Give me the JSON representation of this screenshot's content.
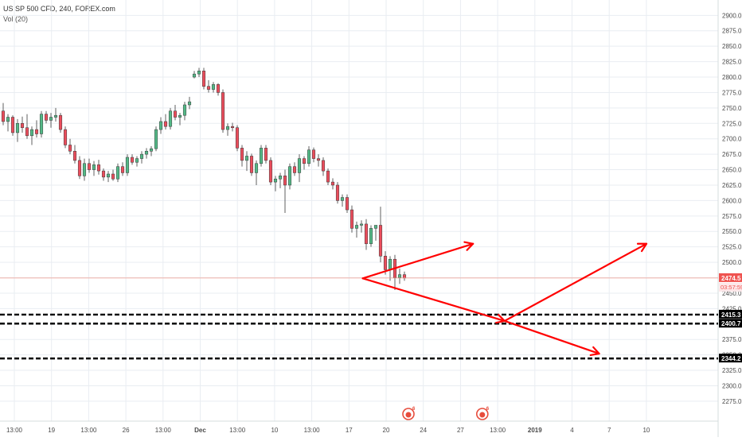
{
  "chart_data": {
    "type": "candlestick",
    "legend": {
      "symbol_line": "US SP 500 CFD, 240, FOREX.com",
      "volume_line": "Vol (20)"
    },
    "price_axis": {
      "ticks": [
        2275,
        2300,
        2325,
        2350,
        2375,
        2400,
        2425,
        2450,
        2475,
        2500,
        2525,
        2550,
        2575,
        2600,
        2625,
        2650,
        2675,
        2700,
        2725,
        2750,
        2775,
        2800,
        2825,
        2850,
        2875,
        2900
      ],
      "tick_labels": [
        "2275.0",
        "2300.0",
        "2325.0",
        "2350.0",
        "2375.0",
        "2400.0",
        "2425.0",
        "2450.0",
        "2475.0",
        "2500.0",
        "2525.0",
        "2550.0",
        "2575.0",
        "2600.0",
        "2625.0",
        "2650.0",
        "2675.0",
        "2700.0",
        "2725.0",
        "2750.0",
        "2775.0",
        "2800.0",
        "2825.0",
        "2850.0",
        "2875.0",
        "2900.0"
      ],
      "range": [
        2262,
        2912
      ]
    },
    "time_axis": {
      "labels": [
        "13:00",
        "19",
        "13:00",
        "26",
        "13:00",
        "Dec",
        "13:00",
        "10",
        "13:00",
        "17",
        "20",
        "24",
        "27",
        "13:00",
        "2019",
        "4",
        "7",
        "10"
      ],
      "bold_labels": [
        "Dec",
        "2019"
      ]
    },
    "current_price": {
      "value": 2474.5,
      "label": "2474.5",
      "countdown": "03:57:59",
      "line_color": "#f19c8e",
      "label_color": "#ef5350"
    },
    "support_levels": [
      {
        "value": 2415.3,
        "label": "2415.3"
      },
      {
        "value": 2400.7,
        "label": "2400.7"
      },
      {
        "value": 2344.2,
        "label": "2344.2"
      }
    ],
    "candles": [
      [
        2745,
        2758,
        2722,
        2728
      ],
      [
        2728,
        2740,
        2712,
        2735
      ],
      [
        2735,
        2738,
        2705,
        2710
      ],
      [
        2710,
        2732,
        2695,
        2725
      ],
      [
        2725,
        2736,
        2710,
        2718
      ],
      [
        2718,
        2740,
        2700,
        2705
      ],
      [
        2705,
        2720,
        2690,
        2715
      ],
      [
        2715,
        2730,
        2702,
        2708
      ],
      [
        2708,
        2745,
        2702,
        2740
      ],
      [
        2740,
        2745,
        2725,
        2730
      ],
      [
        2730,
        2742,
        2718,
        2735
      ],
      [
        2735,
        2750,
        2728,
        2738
      ],
      [
        2738,
        2742,
        2710,
        2715
      ],
      [
        2715,
        2720,
        2685,
        2690
      ],
      [
        2690,
        2700,
        2675,
        2680
      ],
      [
        2680,
        2690,
        2660,
        2665
      ],
      [
        2665,
        2672,
        2635,
        2640
      ],
      [
        2640,
        2668,
        2632,
        2660
      ],
      [
        2660,
        2668,
        2645,
        2650
      ],
      [
        2650,
        2664,
        2640,
        2658
      ],
      [
        2658,
        2666,
        2642,
        2648
      ],
      [
        2648,
        2652,
        2632,
        2638
      ],
      [
        2638,
        2648,
        2630,
        2643
      ],
      [
        2643,
        2650,
        2632,
        2635
      ],
      [
        2635,
        2660,
        2630,
        2655
      ],
      [
        2655,
        2662,
        2640,
        2645
      ],
      [
        2645,
        2675,
        2640,
        2670
      ],
      [
        2670,
        2675,
        2658,
        2662
      ],
      [
        2662,
        2672,
        2655,
        2668
      ],
      [
        2668,
        2680,
        2660,
        2675
      ],
      [
        2675,
        2685,
        2668,
        2680
      ],
      [
        2680,
        2688,
        2672,
        2684
      ],
      [
        2684,
        2720,
        2680,
        2715
      ],
      [
        2715,
        2735,
        2708,
        2728
      ],
      [
        2728,
        2740,
        2715,
        2720
      ],
      [
        2720,
        2750,
        2715,
        2745
      ],
      [
        2745,
        2755,
        2730,
        2735
      ],
      [
        2735,
        2742,
        2722,
        2738
      ],
      [
        2738,
        2760,
        2730,
        2755
      ],
      [
        2755,
        2768,
        2748,
        2760
      ],
      [
        2800,
        2810,
        2798,
        2805
      ],
      [
        2805,
        2815,
        2800,
        2810
      ],
      [
        2810,
        2815,
        2780,
        2785
      ],
      [
        2785,
        2795,
        2775,
        2780
      ],
      [
        2780,
        2792,
        2775,
        2788
      ],
      [
        2788,
        2790,
        2770,
        2775
      ],
      [
        2775,
        2780,
        2710,
        2715
      ],
      [
        2715,
        2725,
        2705,
        2720
      ],
      [
        2720,
        2726,
        2712,
        2718
      ],
      [
        2718,
        2722,
        2680,
        2685
      ],
      [
        2685,
        2690,
        2655,
        2665
      ],
      [
        2665,
        2680,
        2648,
        2672
      ],
      [
        2672,
        2676,
        2640,
        2645
      ],
      [
        2645,
        2665,
        2625,
        2660
      ],
      [
        2660,
        2690,
        2655,
        2685
      ],
      [
        2685,
        2690,
        2660,
        2665
      ],
      [
        2665,
        2670,
        2625,
        2630
      ],
      [
        2630,
        2640,
        2615,
        2635
      ],
      [
        2635,
        2645,
        2620,
        2640
      ],
      [
        2640,
        2650,
        2580,
        2625
      ],
      [
        2625,
        2660,
        2618,
        2655
      ],
      [
        2655,
        2662,
        2640,
        2645
      ],
      [
        2645,
        2675,
        2630,
        2668
      ],
      [
        2668,
        2672,
        2650,
        2660
      ],
      [
        2660,
        2688,
        2655,
        2682
      ],
      [
        2682,
        2686,
        2662,
        2668
      ],
      [
        2668,
        2675,
        2655,
        2665
      ],
      [
        2665,
        2670,
        2640,
        2648
      ],
      [
        2648,
        2652,
        2625,
        2630
      ],
      [
        2630,
        2636,
        2618,
        2625
      ],
      [
        2625,
        2630,
        2595,
        2600
      ],
      [
        2600,
        2610,
        2590,
        2605
      ],
      [
        2605,
        2610,
        2580,
        2585
      ],
      [
        2585,
        2592,
        2548,
        2555
      ],
      [
        2555,
        2566,
        2540,
        2560
      ],
      [
        2560,
        2568,
        2548,
        2562
      ],
      [
        2562,
        2570,
        2520,
        2530
      ],
      [
        2530,
        2560,
        2525,
        2555
      ],
      [
        2555,
        2560,
        2535,
        2560
      ],
      [
        2560,
        2590,
        2500,
        2510
      ],
      [
        2510,
        2518,
        2480,
        2488
      ],
      [
        2488,
        2510,
        2470,
        2505
      ],
      [
        2505,
        2512,
        2455,
        2475
      ],
      [
        2475,
        2490,
        2465,
        2480
      ],
      [
        2480,
        2485,
        2470,
        2474.5
      ]
    ],
    "arrows": [
      {
        "from": [
          2474,
          22
        ],
        "to": [
          2530,
          29
        ]
      },
      {
        "from": [
          2474,
          22
        ],
        "to": [
          2405,
          31
        ]
      },
      {
        "from": [
          2405,
          31
        ],
        "to": [
          2530,
          40
        ]
      },
      {
        "from": [
          2405,
          31
        ],
        "to": [
          2352,
          37
        ]
      },
      {
        "from": [
          2622,
          52
        ],
        "to": [
          2352,
          60
        ]
      }
    ],
    "event_badges": [
      {
        "label": "6",
        "slot": 21
      },
      {
        "label": "6",
        "slot": 29
      }
    ],
    "colors": {
      "up": "#53b987",
      "down": "#eb4d5c",
      "arrow": "#ff0000",
      "grid": "#e9edf2",
      "axis_text": "#4a4a4a",
      "badge": "#e74c3c"
    }
  }
}
